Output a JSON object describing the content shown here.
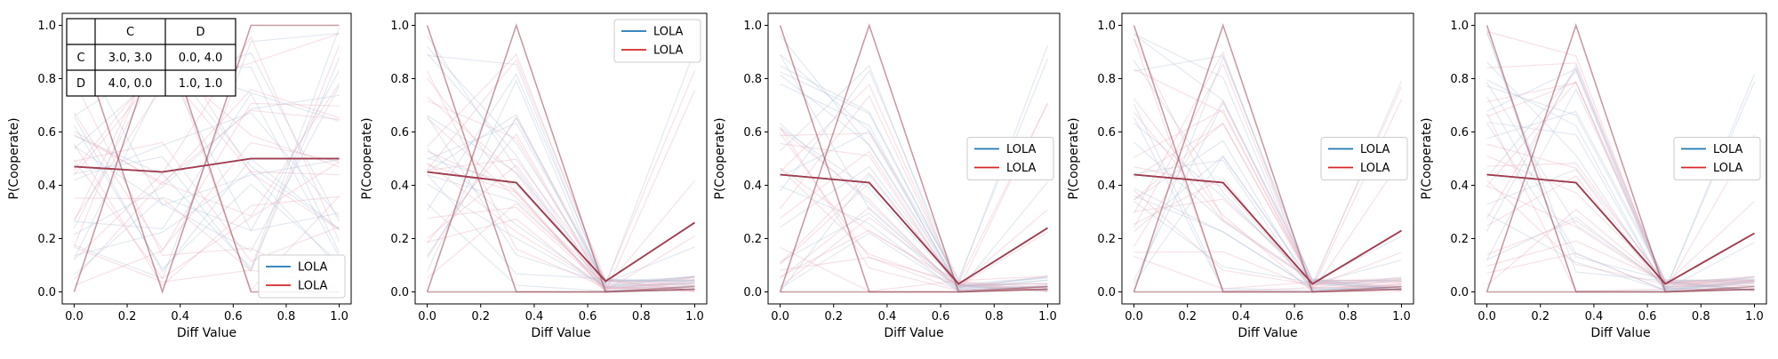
{
  "colors": {
    "blue": "#1f77b4",
    "red": "#d62728",
    "faint_blue": "#aebfd8",
    "faint_red": "#e7a9b6",
    "mix": "#9b4a5a"
  },
  "payoff_table": {
    "header": [
      "",
      "C",
      "D"
    ],
    "rows": [
      [
        "C",
        "3.0, 3.0",
        "0.0, 4.0"
      ],
      [
        "D",
        "4.0, 0.0",
        "1.0, 1.0"
      ]
    ]
  },
  "chart_data": [
    {
      "type": "line",
      "xlabel": "Diff Value",
      "ylabel": "P(Cooperate)",
      "xlim": [
        0,
        1
      ],
      "ylim": [
        0,
        1
      ],
      "x_ticks": [
        "0.0",
        "0.2",
        "0.4",
        "0.6",
        "0.8",
        "1.0"
      ],
      "y_ticks": [
        "0.0",
        "0.2",
        "0.4",
        "0.6",
        "0.8",
        "1.0"
      ],
      "x": [
        0,
        0.333,
        0.667,
        1.0
      ],
      "legend": {
        "position": "lower-right",
        "entries": [
          "LOLA",
          "LOLA"
        ]
      },
      "series": [
        {
          "name": "LOLA",
          "color": "blue",
          "values": [
            0.47,
            0.45,
            0.5,
            0.5
          ]
        },
        {
          "name": "LOLA",
          "color": "red",
          "values": [
            0.47,
            0.45,
            0.5,
            0.5
          ]
        }
      ]
    },
    {
      "type": "line",
      "xlabel": "Diff Value",
      "ylabel": "P(Cooperate)",
      "xlim": [
        0,
        1
      ],
      "ylim": [
        0,
        1
      ],
      "x_ticks": [
        "0.0",
        "0.2",
        "0.4",
        "0.6",
        "0.8",
        "1.0"
      ],
      "y_ticks": [
        "0.0",
        "0.2",
        "0.4",
        "0.6",
        "0.8",
        "1.0"
      ],
      "x": [
        0,
        0.333,
        0.667,
        1.0
      ],
      "legend": {
        "position": "upper-right",
        "entries": [
          "LOLA",
          "LOLA"
        ]
      },
      "series": [
        {
          "name": "LOLA",
          "color": "blue",
          "values": [
            0.45,
            0.41,
            0.04,
            0.26
          ]
        },
        {
          "name": "LOLA",
          "color": "red",
          "values": [
            0.45,
            0.41,
            0.04,
            0.26
          ]
        }
      ]
    },
    {
      "type": "line",
      "xlabel": "Diff Value",
      "ylabel": "P(Cooperate)",
      "xlim": [
        0,
        1
      ],
      "ylim": [
        0,
        1
      ],
      "x_ticks": [
        "0.0",
        "0.2",
        "0.4",
        "0.6",
        "0.8",
        "1.0"
      ],
      "y_ticks": [
        "0.0",
        "0.2",
        "0.4",
        "0.6",
        "0.8",
        "1.0"
      ],
      "x": [
        0,
        0.333,
        0.667,
        1.0
      ],
      "legend": {
        "position": "center-right",
        "entries": [
          "LOLA",
          "LOLA"
        ]
      },
      "series": [
        {
          "name": "LOLA",
          "color": "blue",
          "values": [
            0.44,
            0.41,
            0.03,
            0.24
          ]
        },
        {
          "name": "LOLA",
          "color": "red",
          "values": [
            0.44,
            0.41,
            0.03,
            0.24
          ]
        }
      ]
    },
    {
      "type": "line",
      "xlabel": "Diff Value",
      "ylabel": "P(Cooperate)",
      "xlim": [
        0,
        1
      ],
      "ylim": [
        0,
        1
      ],
      "x_ticks": [
        "0.0",
        "0.2",
        "0.4",
        "0.6",
        "0.8",
        "1.0"
      ],
      "y_ticks": [
        "0.0",
        "0.2",
        "0.4",
        "0.6",
        "0.8",
        "1.0"
      ],
      "x": [
        0,
        0.333,
        0.667,
        1.0
      ],
      "legend": {
        "position": "center-right",
        "entries": [
          "LOLA",
          "LOLA"
        ]
      },
      "series": [
        {
          "name": "LOLA",
          "color": "blue",
          "values": [
            0.44,
            0.41,
            0.03,
            0.23
          ]
        },
        {
          "name": "LOLA",
          "color": "red",
          "values": [
            0.44,
            0.41,
            0.03,
            0.23
          ]
        }
      ]
    },
    {
      "type": "line",
      "xlabel": "Diff Value",
      "ylabel": "P(Cooperate)",
      "xlim": [
        0,
        1
      ],
      "ylim": [
        0,
        1
      ],
      "x_ticks": [
        "0.0",
        "0.2",
        "0.4",
        "0.6",
        "0.8",
        "1.0"
      ],
      "y_ticks": [
        "0.0",
        "0.2",
        "0.4",
        "0.6",
        "0.8",
        "1.0"
      ],
      "x": [
        0,
        0.333,
        0.667,
        1.0
      ],
      "legend": {
        "position": "center-right",
        "entries": [
          "LOLA",
          "LOLA"
        ]
      },
      "series": [
        {
          "name": "LOLA",
          "color": "blue",
          "values": [
            0.44,
            0.41,
            0.03,
            0.22
          ]
        },
        {
          "name": "LOLA",
          "color": "red",
          "values": [
            0.44,
            0.41,
            0.03,
            0.22
          ]
        }
      ]
    }
  ]
}
